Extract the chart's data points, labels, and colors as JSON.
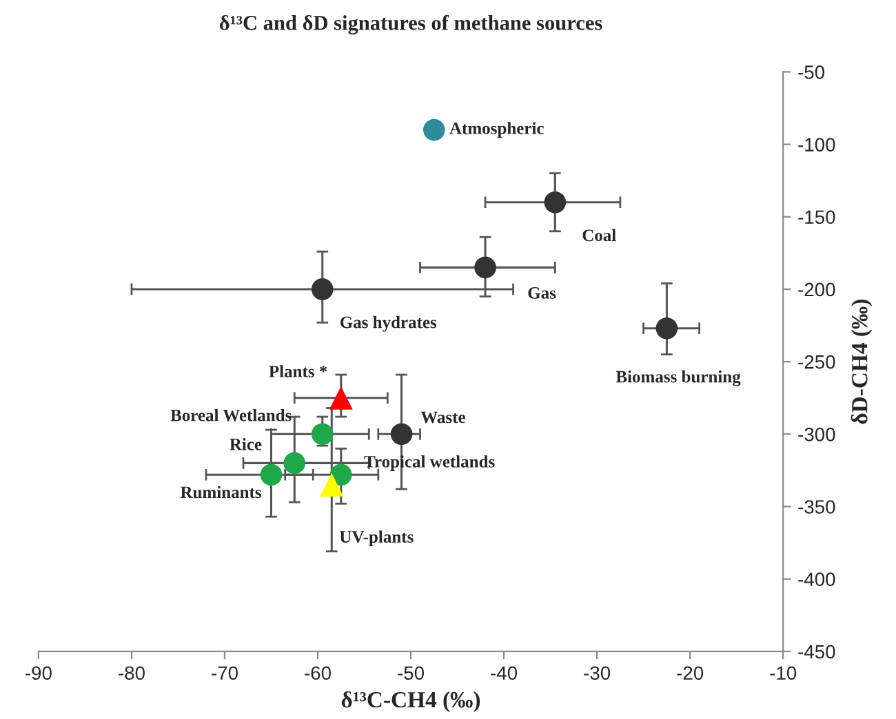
{
  "chart_data": {
    "type": "scatter",
    "title": "δ¹³C and δD signatures of methane sources",
    "xlabel": "δ¹³C-CH4 (‰)",
    "ylabel": "δD-CH4 (‰)",
    "xlim": [
      -90,
      -10
    ],
    "xticks": [
      -90,
      -80,
      -70,
      -60,
      -50,
      -40,
      -30,
      -20,
      -10
    ],
    "ylim": [
      -450,
      -50
    ],
    "yticks": [
      -450,
      -400,
      -350,
      -300,
      -250,
      -200,
      -150,
      -100,
      -50
    ],
    "grid": false,
    "legend": false,
    "series": [
      {
        "color": "#333333",
        "marker": "circle",
        "x": [
          -34.5,
          -42,
          -59.5,
          -22.5,
          -51
        ],
        "values": [
          -140,
          -185,
          -200,
          -227,
          -300
        ],
        "xerrors": [
          [
            -42,
            -27.5
          ],
          [
            -49,
            -34.5
          ],
          [
            -80,
            -39
          ],
          [
            -25,
            -19
          ],
          [
            -53.5,
            -49
          ]
        ],
        "errors": [
          [
            -160,
            -120
          ],
          [
            -205,
            -164
          ],
          [
            -223,
            -174
          ],
          [
            -245,
            -196
          ],
          [
            -338,
            -259
          ]
        ]
      },
      {
        "color": "#1fa84a",
        "marker": "circle",
        "x": [
          -59.5,
          -62.5,
          -65,
          -57.5
        ],
        "values": [
          -300,
          -320,
          -328,
          -328
        ],
        "xerrors": [
          [
            -65,
            -54.5
          ],
          [
            -68,
            -54.5
          ],
          [
            -72,
            -60.5
          ],
          [
            -63.5,
            -53.5
          ]
        ],
        "errors": [
          [
            -308,
            -288
          ],
          [
            -347,
            -288
          ],
          [
            -357,
            -297
          ],
          [
            -348,
            -310
          ]
        ]
      },
      {
        "color": "#2e8b9a",
        "marker": "circle",
        "x": [
          -47.5
        ],
        "values": [
          -90
        ]
      },
      {
        "color": "#ff0000",
        "marker": "triangle",
        "x": [
          -57.5
        ],
        "values": [
          -275
        ],
        "xerrors": [
          [
            -62.5,
            -52.5
          ]
        ],
        "errors": [
          [
            -288,
            -259
          ]
        ]
      },
      {
        "color": "#ffff00",
        "marker": "triangle",
        "x": [
          -58.5
        ],
        "values": [
          -335
        ],
        "errors": [
          [
            -381,
            -282
          ]
        ]
      }
    ],
    "annotations": [
      {
        "text": "Atmospheric",
        "x": -47.5,
        "y": -90
      },
      {
        "text": "Coal",
        "x": -34.5,
        "y": -140
      },
      {
        "text": "Gas",
        "x": -42,
        "y": -185
      },
      {
        "text": "Gas hydrates",
        "x": -59.5,
        "y": -200
      },
      {
        "text": "Biomass burning",
        "x": -22.5,
        "y": -227
      },
      {
        "text": "Plants *",
        "x": -57.5,
        "y": -275
      },
      {
        "text": "Boreal Wetlands",
        "x": -59.5,
        "y": -300
      },
      {
        "text": "Rice",
        "x": -62.5,
        "y": -320
      },
      {
        "text": "Ruminants",
        "x": -65,
        "y": -328
      },
      {
        "text": "Tropical wetlands",
        "x": -57.5,
        "y": -328
      },
      {
        "text": "Waste",
        "x": -51,
        "y": -300
      },
      {
        "text": "UV-plants",
        "x": -58.5,
        "y": -335
      }
    ]
  }
}
